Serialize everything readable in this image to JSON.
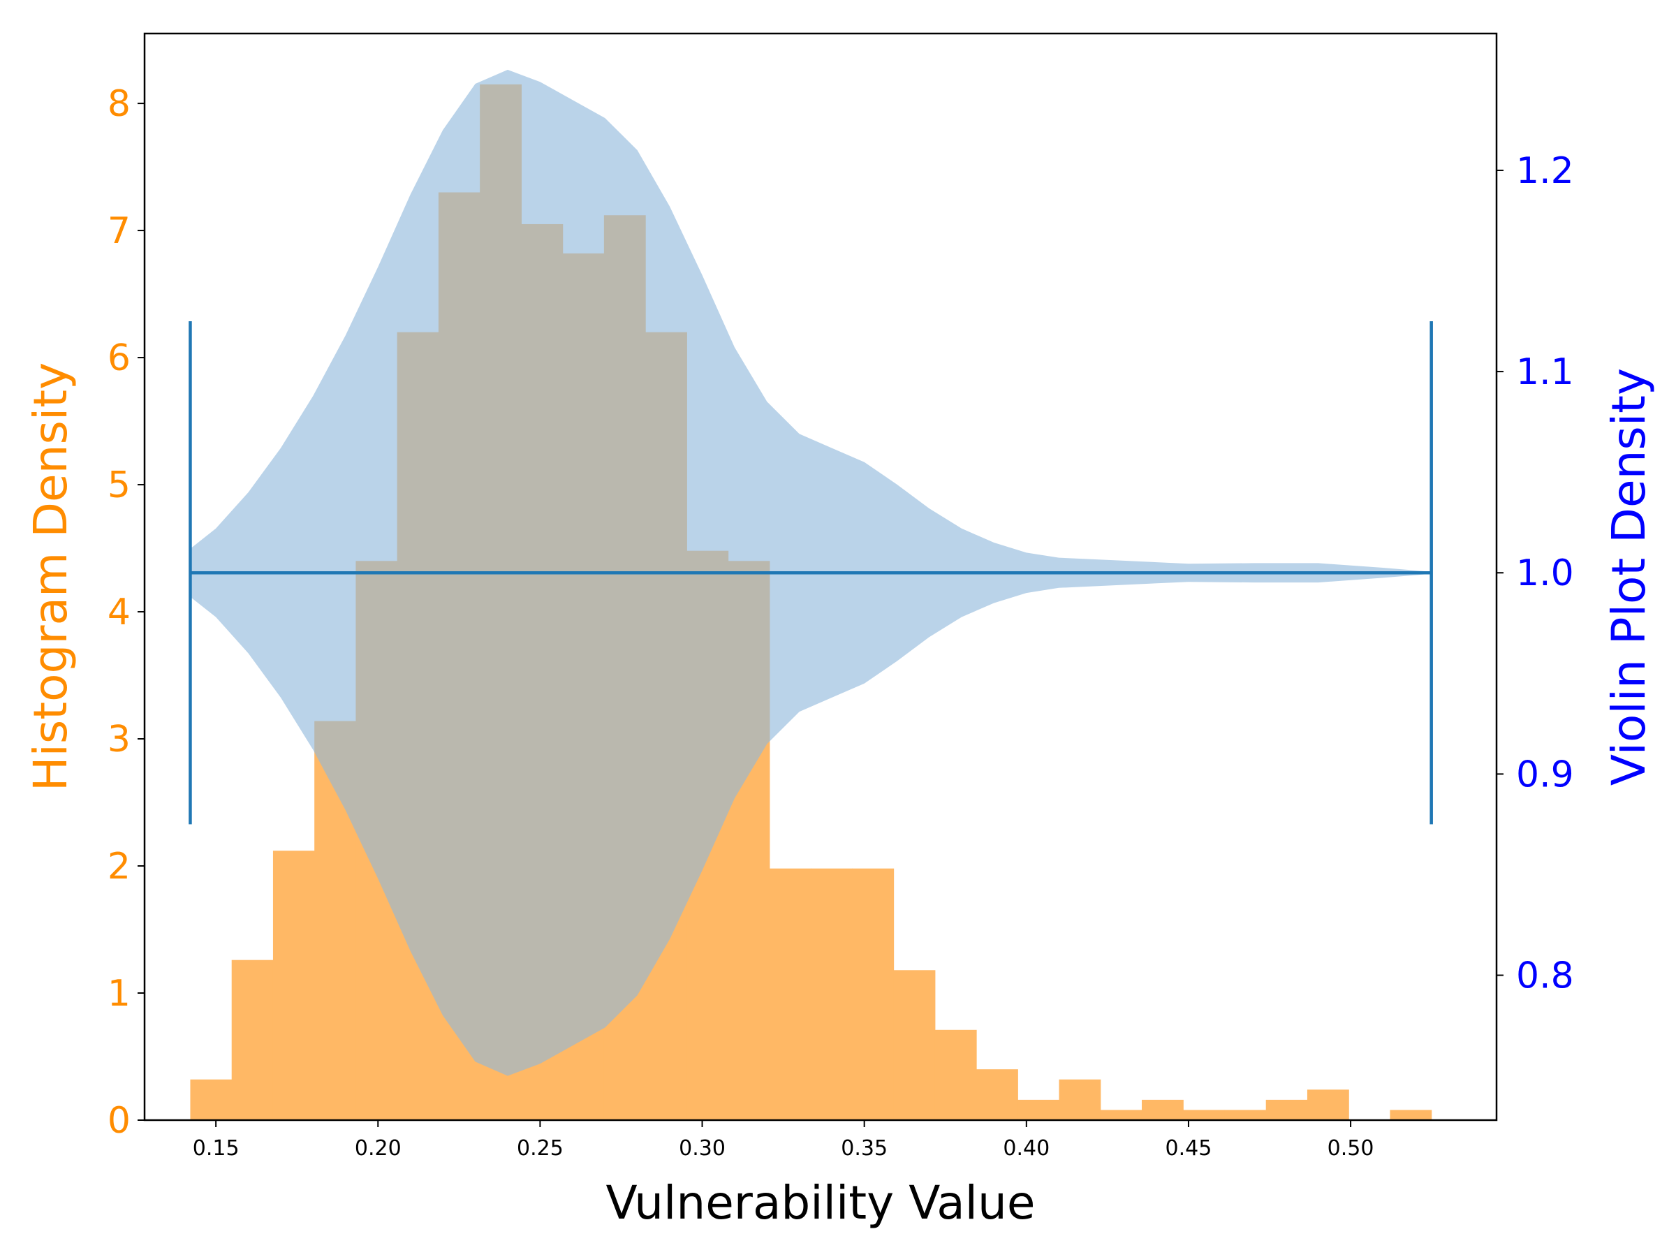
{
  "chart_data": {
    "type": "bar",
    "xlabel": "Vulnerability Value",
    "ylabel_left": "Histogram Density",
    "ylabel_right": "Violin Plot Density",
    "xlim": [
      0.128,
      0.545
    ],
    "ylim_left": [
      0,
      8.55
    ],
    "ylim_right": [
      0.728,
      1.268
    ],
    "x_ticks": [
      {
        "value": 0.15,
        "label": "0.15"
      },
      {
        "value": 0.2,
        "label": "0.20"
      },
      {
        "value": 0.25,
        "label": "0.25"
      },
      {
        "value": 0.3,
        "label": "0.30"
      },
      {
        "value": 0.35,
        "label": "0.35"
      },
      {
        "value": 0.4,
        "label": "0.40"
      },
      {
        "value": 0.45,
        "label": "0.45"
      },
      {
        "value": 0.5,
        "label": "0.50"
      }
    ],
    "y_left_ticks": [
      {
        "value": 0,
        "label": "0"
      },
      {
        "value": 1,
        "label": "1"
      },
      {
        "value": 2,
        "label": "2"
      },
      {
        "value": 3,
        "label": "3"
      },
      {
        "value": 4,
        "label": "4"
      },
      {
        "value": 5,
        "label": "5"
      },
      {
        "value": 6,
        "label": "6"
      },
      {
        "value": 7,
        "label": "7"
      },
      {
        "value": 8,
        "label": "8"
      }
    ],
    "y_right_ticks": [
      {
        "value": 0.8,
        "label": "0.8"
      },
      {
        "value": 0.9,
        "label": "0.9"
      },
      {
        "value": 1.0,
        "label": "1.0"
      },
      {
        "value": 1.1,
        "label": "1.1"
      },
      {
        "value": 1.2,
        "label": "1.2"
      }
    ],
    "histogram": {
      "color": "#ffb865",
      "bin_start": 0.1421,
      "bin_width": 0.01276,
      "values": [
        0.32,
        1.26,
        2.12,
        3.14,
        4.4,
        6.2,
        7.3,
        8.15,
        7.05,
        6.82,
        7.12,
        6.2,
        4.48,
        4.4,
        1.98,
        1.98,
        1.98,
        1.18,
        0.71,
        0.4,
        0.16,
        0.32,
        0.08,
        0.16,
        0.08,
        0.08,
        0.16,
        0.24,
        0.0,
        0.08
      ]
    },
    "violin": {
      "color": "#8fb8dc",
      "opacity": 0.62,
      "center": 1.0,
      "profile": [
        {
          "x": 0.1421,
          "w": 0.012
        },
        {
          "x": 0.15,
          "w": 0.022
        },
        {
          "x": 0.16,
          "w": 0.04
        },
        {
          "x": 0.17,
          "w": 0.062
        },
        {
          "x": 0.18,
          "w": 0.088
        },
        {
          "x": 0.19,
          "w": 0.118
        },
        {
          "x": 0.2,
          "w": 0.152
        },
        {
          "x": 0.21,
          "w": 0.188
        },
        {
          "x": 0.22,
          "w": 0.22
        },
        {
          "x": 0.23,
          "w": 0.243
        },
        {
          "x": 0.24,
          "w": 0.25
        },
        {
          "x": 0.25,
          "w": 0.244
        },
        {
          "x": 0.26,
          "w": 0.235
        },
        {
          "x": 0.27,
          "w": 0.226
        },
        {
          "x": 0.28,
          "w": 0.21
        },
        {
          "x": 0.29,
          "w": 0.182
        },
        {
          "x": 0.3,
          "w": 0.148
        },
        {
          "x": 0.31,
          "w": 0.112
        },
        {
          "x": 0.32,
          "w": 0.085
        },
        {
          "x": 0.33,
          "w": 0.069
        },
        {
          "x": 0.34,
          "w": 0.062
        },
        {
          "x": 0.35,
          "w": 0.055
        },
        {
          "x": 0.36,
          "w": 0.044
        },
        {
          "x": 0.37,
          "w": 0.032
        },
        {
          "x": 0.38,
          "w": 0.022
        },
        {
          "x": 0.39,
          "w": 0.015
        },
        {
          "x": 0.4,
          "w": 0.01
        },
        {
          "x": 0.41,
          "w": 0.0075
        },
        {
          "x": 0.43,
          "w": 0.006
        },
        {
          "x": 0.45,
          "w": 0.0045
        },
        {
          "x": 0.47,
          "w": 0.0048
        },
        {
          "x": 0.49,
          "w": 0.0048
        },
        {
          "x": 0.51,
          "w": 0.0025
        },
        {
          "x": 0.5249,
          "w": 0.0005
        }
      ]
    },
    "violin_lines": {
      "color": "#1f77b4",
      "x_min": 0.1421,
      "x_max": 0.5249,
      "cap_low": 0.875,
      "cap_high": 1.125
    },
    "colors": {
      "left_axis": "#ff8c00",
      "right_axis": "#0000ff",
      "axes": "#000000"
    }
  }
}
